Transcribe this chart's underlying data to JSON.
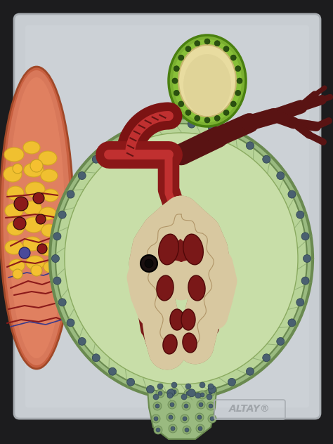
{
  "bg_color": "#1c1c1e",
  "board_color": "#c8cdd2",
  "board_shadow": "#b0b5ba",
  "skin_bg": "#d4795a",
  "skin_top": "#c86848",
  "fat_color": "#f0c030",
  "fat_edge": "#d4a820",
  "vessel_red": "#8b1a1a",
  "vessel_blue": "#3a3a8b",
  "capsule_outer_fc": "#9aba80",
  "capsule_outer_ec": "#6a8a50",
  "capsule_rim_fc": "#b8d498",
  "capsule_inner_fc": "#c8dea8",
  "dot_fc": "#4a6070",
  "dot_ec": "#2a4050",
  "neck_fc": "#9aba80",
  "neck_cell_fc": "#8aaa70",
  "neck_dot_fc": "#4a6070",
  "glom_cream": "#d8c8a0",
  "glom_cream_dark": "#c0a880",
  "glom_edge": "#a08060",
  "blood_fc": "#7a1818",
  "blood_ec": "#500808",
  "afferent_fc": "#8b1818",
  "afferent_ec": "#5a0808",
  "afferent_lumen": "#c03030",
  "left_tube_fc": "#7a1818",
  "branch_fc": "#6b1a1a",
  "cs_outer_fc": "#7ab030",
  "cs_outer_ec": "#4a8010",
  "cs_ring_fc": "#90c840",
  "cs_inner_fc": "#e8dca0",
  "cs_inner_ec": "#c8b870",
  "cs_dot_fc": "#2a5010",
  "altay_color": "#909498",
  "black_hole": "#1a1a1a",
  "tubule_color": "#d8c8a0"
}
